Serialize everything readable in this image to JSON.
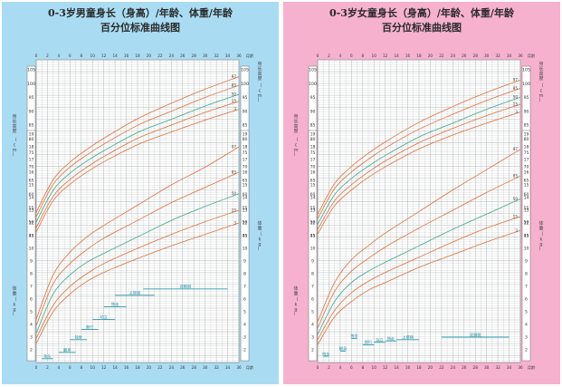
{
  "boys": {
    "title_line1": "0-3岁男童身长（身高）/年龄、体重/年龄",
    "title_line2": "百分位标准曲线图"
  },
  "girls": {
    "title_line1": "0-3岁女童身长（身高）/年龄、体重/年龄",
    "title_line2": "百分位标准曲线图"
  },
  "colors": {
    "boys_bg": "#a9dcf3",
    "girls_bg": "#f6b1cf",
    "p50_curve": "#3aa98a",
    "other_curves": "#e0703a",
    "grid": "#b9bcbd",
    "milestone": "#2c9bb0"
  },
  "axis": {
    "month_unit": "月龄",
    "length_label": "身长高度",
    "length_unit": "cm",
    "weight_label": "体重",
    "weight_unit": "kg"
  },
  "chart_data": [
    {
      "type": "line",
      "panel": "boys",
      "x_label": "月龄",
      "x_ticks": [
        0,
        2,
        4,
        6,
        8,
        10,
        12,
        14,
        16,
        18,
        20,
        22,
        24,
        26,
        28,
        30,
        32,
        34,
        36
      ],
      "xlim": [
        0,
        36
      ],
      "length": {
        "ylabel": "身长高度（cm）",
        "ticks": [
          45,
          50,
          55,
          60,
          65,
          70,
          75,
          80,
          85,
          90,
          95,
          100,
          105
        ],
        "percentiles": [
          "3",
          "15",
          "50",
          "85",
          "97"
        ],
        "series": [
          {
            "name": "3",
            "values": [
              [
                0,
                46.3
              ],
              [
                3,
                57.6
              ],
              [
                6,
                63.6
              ],
              [
                9,
                68.0
              ],
              [
                12,
                71.7
              ],
              [
                18,
                77.9
              ],
              [
                24,
                82.5
              ],
              [
                30,
                86.8
              ],
              [
                36,
                90.7
              ]
            ]
          },
          {
            "name": "15",
            "values": [
              [
                0,
                47.9
              ],
              [
                3,
                59.2
              ],
              [
                6,
                65.3
              ],
              [
                9,
                69.8
              ],
              [
                12,
                73.6
              ],
              [
                18,
                80.2
              ],
              [
                24,
                85.0
              ],
              [
                30,
                89.6
              ],
              [
                36,
                93.6
              ]
            ]
          },
          {
            "name": "50",
            "values": [
              [
                0,
                49.9
              ],
              [
                3,
                61.4
              ],
              [
                6,
                67.6
              ],
              [
                9,
                72.0
              ],
              [
                12,
                75.7
              ],
              [
                18,
                82.3
              ],
              [
                24,
                87.1
              ],
              [
                30,
                91.9
              ],
              [
                36,
                96.1
              ]
            ]
          },
          {
            "name": "85",
            "values": [
              [
                0,
                51.8
              ],
              [
                3,
                63.5
              ],
              [
                6,
                69.8
              ],
              [
                9,
                74.2
              ],
              [
                12,
                78.1
              ],
              [
                18,
                84.9
              ],
              [
                24,
                90.0
              ],
              [
                30,
                95.0
              ],
              [
                36,
                99.4
              ]
            ]
          },
          {
            "name": "97",
            "values": [
              [
                0,
                53.4
              ],
              [
                3,
                65.2
              ],
              [
                6,
                71.6
              ],
              [
                9,
                76.2
              ],
              [
                12,
                80.2
              ],
              [
                18,
                87.3
              ],
              [
                24,
                92.9
              ],
              [
                30,
                98.0
              ],
              [
                36,
                102.5
              ]
            ]
          }
        ]
      },
      "weight": {
        "ylabel": "体重（kg）",
        "ticks": [
          2,
          3,
          4,
          5,
          6,
          7,
          8,
          9,
          10,
          11,
          12,
          13,
          14,
          15,
          16,
          17,
          18,
          19
        ],
        "percentiles": [
          "3",
          "15",
          "50",
          "85",
          "97"
        ],
        "series": [
          {
            "name": "3",
            "values": [
              [
                0,
                2.5
              ],
              [
                3,
                5.0
              ],
              [
                6,
                6.4
              ],
              [
                9,
                7.4
              ],
              [
                12,
                8.1
              ],
              [
                18,
                9.2
              ],
              [
                24,
                10.2
              ],
              [
                30,
                11.1
              ],
              [
                36,
                12.0
              ]
            ]
          },
          {
            "name": "15",
            "values": [
              [
                0,
                2.9
              ],
              [
                3,
                5.5
              ],
              [
                6,
                7.0
              ],
              [
                9,
                8.0
              ],
              [
                12,
                8.8
              ],
              [
                18,
                10.0
              ],
              [
                24,
                11.1
              ],
              [
                30,
                12.1
              ],
              [
                36,
                13.0
              ]
            ]
          },
          {
            "name": "50",
            "values": [
              [
                0,
                3.3
              ],
              [
                3,
                6.4
              ],
              [
                6,
                7.9
              ],
              [
                9,
                8.9
              ],
              [
                12,
                9.6
              ],
              [
                18,
                10.9
              ],
              [
                24,
                12.2
              ],
              [
                30,
                13.3
              ],
              [
                36,
                14.3
              ]
            ]
          },
          {
            "name": "85",
            "values": [
              [
                0,
                3.9
              ],
              [
                3,
                7.2
              ],
              [
                6,
                8.8
              ],
              [
                9,
                9.9
              ],
              [
                12,
                10.8
              ],
              [
                18,
                12.2
              ],
              [
                24,
                13.6
              ],
              [
                30,
                14.8
              ],
              [
                36,
                16.0
              ]
            ]
          },
          {
            "name": "97",
            "values": [
              [
                0,
                4.4
              ],
              [
                3,
                7.9
              ],
              [
                6,
                9.7
              ],
              [
                9,
                10.9
              ],
              [
                12,
                11.8
              ],
              [
                18,
                13.4
              ],
              [
                24,
                15.0
              ],
              [
                30,
                16.4
              ],
              [
                36,
                18.0
              ]
            ]
          }
        ]
      },
      "milestones": [
        {
          "x_start": 1,
          "x_end": 3,
          "y": 1.3,
          "label": "抬头"
        },
        {
          "x_start": 4,
          "x_end": 7,
          "y": 1.8,
          "label": "翻身"
        },
        {
          "x_start": 6,
          "x_end": 9,
          "y": 2.8,
          "label": "独坐"
        },
        {
          "x_start": 8,
          "x_end": 11,
          "y": 3.6,
          "label": "爬行"
        },
        {
          "x_start": 10,
          "x_end": 14,
          "y": 4.4,
          "label": "站立"
        },
        {
          "x_start": 12,
          "x_end": 16,
          "y": 5.4,
          "label": "独走"
        },
        {
          "x_start": 14,
          "x_end": 21,
          "y": 6.3,
          "label": "上楼梯"
        },
        {
          "x_start": 19,
          "x_end": 34,
          "y": 6.8,
          "label": "双脚跳"
        }
      ]
    },
    {
      "type": "line",
      "panel": "girls",
      "x_label": "月龄",
      "x_ticks": [
        0,
        2,
        4,
        6,
        8,
        10,
        12,
        14,
        16,
        18,
        20,
        22,
        24,
        26,
        28,
        30,
        32,
        34,
        36
      ],
      "xlim": [
        0,
        36
      ],
      "length": {
        "ylabel": "身长高度（cm）",
        "ticks": [
          45,
          50,
          55,
          60,
          65,
          70,
          75,
          80,
          85,
          90,
          95,
          100,
          105
        ],
        "percentiles": [
          "3",
          "15",
          "50",
          "85",
          "97"
        ],
        "series": [
          {
            "name": "3",
            "values": [
              [
                0,
                45.6
              ],
              [
                3,
                55.8
              ],
              [
                6,
                61.5
              ],
              [
                9,
                66.1
              ],
              [
                12,
                69.9
              ],
              [
                18,
                76.4
              ],
              [
                24,
                81.4
              ],
              [
                30,
                85.7
              ],
              [
                36,
                89.7
              ]
            ]
          },
          {
            "name": "15",
            "values": [
              [
                0,
                47.2
              ],
              [
                3,
                57.6
              ],
              [
                6,
                63.4
              ],
              [
                9,
                68.0
              ],
              [
                12,
                72.0
              ],
              [
                18,
                78.6
              ],
              [
                24,
                83.8
              ],
              [
                30,
                88.4
              ],
              [
                36,
                92.5
              ]
            ]
          },
          {
            "name": "50",
            "values": [
              [
                0,
                49.1
              ],
              [
                3,
                59.8
              ],
              [
                6,
                65.7
              ],
              [
                9,
                70.1
              ],
              [
                12,
                74.0
              ],
              [
                18,
                80.7
              ],
              [
                24,
                85.7
              ],
              [
                30,
                90.7
              ],
              [
                36,
                95.1
              ]
            ]
          },
          {
            "name": "85",
            "values": [
              [
                0,
                51.1
              ],
              [
                3,
                62.0
              ],
              [
                6,
                68.0
              ],
              [
                9,
                72.6
              ],
              [
                12,
                76.7
              ],
              [
                18,
                83.5
              ],
              [
                24,
                88.9
              ],
              [
                30,
                93.9
              ],
              [
                36,
                98.3
              ]
            ]
          },
          {
            "name": "97",
            "values": [
              [
                0,
                52.7
              ],
              [
                3,
                63.8
              ],
              [
                6,
                70.0
              ],
              [
                9,
                74.8
              ],
              [
                12,
                78.9
              ],
              [
                18,
                86.0
              ],
              [
                24,
                91.7
              ],
              [
                30,
                96.8
              ],
              [
                36,
                101.3
              ]
            ]
          }
        ]
      },
      "weight": {
        "ylabel": "体重（kg）",
        "ticks": [
          2,
          3,
          4,
          5,
          6,
          7,
          8,
          9,
          10,
          11,
          12,
          13,
          14,
          15,
          16,
          17,
          18,
          19
        ],
        "percentiles": [
          "3",
          "15",
          "50",
          "85",
          "97"
        ],
        "series": [
          {
            "name": "3",
            "values": [
              [
                0,
                2.4
              ],
              [
                3,
                4.6
              ],
              [
                6,
                5.8
              ],
              [
                9,
                6.7
              ],
              [
                12,
                7.3
              ],
              [
                18,
                8.5
              ],
              [
                24,
                9.5
              ],
              [
                30,
                10.5
              ],
              [
                36,
                11.4
              ]
            ]
          },
          {
            "name": "15",
            "values": [
              [
                0,
                2.8
              ],
              [
                3,
                5.1
              ],
              [
                6,
                6.5
              ],
              [
                9,
                7.4
              ],
              [
                12,
                8.1
              ],
              [
                18,
                9.3
              ],
              [
                24,
                10.5
              ],
              [
                30,
                11.6
              ],
              [
                36,
                12.5
              ]
            ]
          },
          {
            "name": "50",
            "values": [
              [
                0,
                3.2
              ],
              [
                3,
                5.8
              ],
              [
                6,
                7.3
              ],
              [
                9,
                8.2
              ],
              [
                12,
                8.9
              ],
              [
                18,
                10.2
              ],
              [
                24,
                11.5
              ],
              [
                30,
                12.7
              ],
              [
                36,
                13.9
              ]
            ]
          },
          {
            "name": "85",
            "values": [
              [
                0,
                3.7
              ],
              [
                3,
                6.6
              ],
              [
                6,
                8.2
              ],
              [
                9,
                9.2
              ],
              [
                12,
                10.1
              ],
              [
                18,
                11.6
              ],
              [
                24,
                13.0
              ],
              [
                30,
                14.4
              ],
              [
                36,
                15.7
              ]
            ]
          },
          {
            "name": "97",
            "values": [
              [
                0,
                4.2
              ],
              [
                3,
                7.3
              ],
              [
                6,
                9.1
              ],
              [
                9,
                10.2
              ],
              [
                12,
                11.2
              ],
              [
                18,
                12.9
              ],
              [
                24,
                14.6
              ],
              [
                30,
                16.2
              ],
              [
                36,
                17.8
              ]
            ]
          }
        ]
      },
      "milestones": [
        {
          "x_start": 1,
          "x_end": 2,
          "y": 1.5,
          "label": "抬头"
        },
        {
          "x_start": 4,
          "x_end": 5,
          "y": 1.9,
          "label": "翻身"
        },
        {
          "x_start": 6,
          "x_end": 7,
          "y": 2.9,
          "label": "独坐"
        },
        {
          "x_start": 8,
          "x_end": 10,
          "y": 2.4,
          "label": "爬行"
        },
        {
          "x_start": 10,
          "x_end": 12,
          "y": 2.6,
          "label": "站立"
        },
        {
          "x_start": 12,
          "x_end": 14,
          "y": 2.7,
          "label": "独走"
        },
        {
          "x_start": 14,
          "x_end": 18,
          "y": 2.8,
          "label": "上楼梯"
        },
        {
          "x_start": 22,
          "x_end": 34,
          "y": 3.0,
          "label": "双脚跳"
        }
      ]
    }
  ]
}
